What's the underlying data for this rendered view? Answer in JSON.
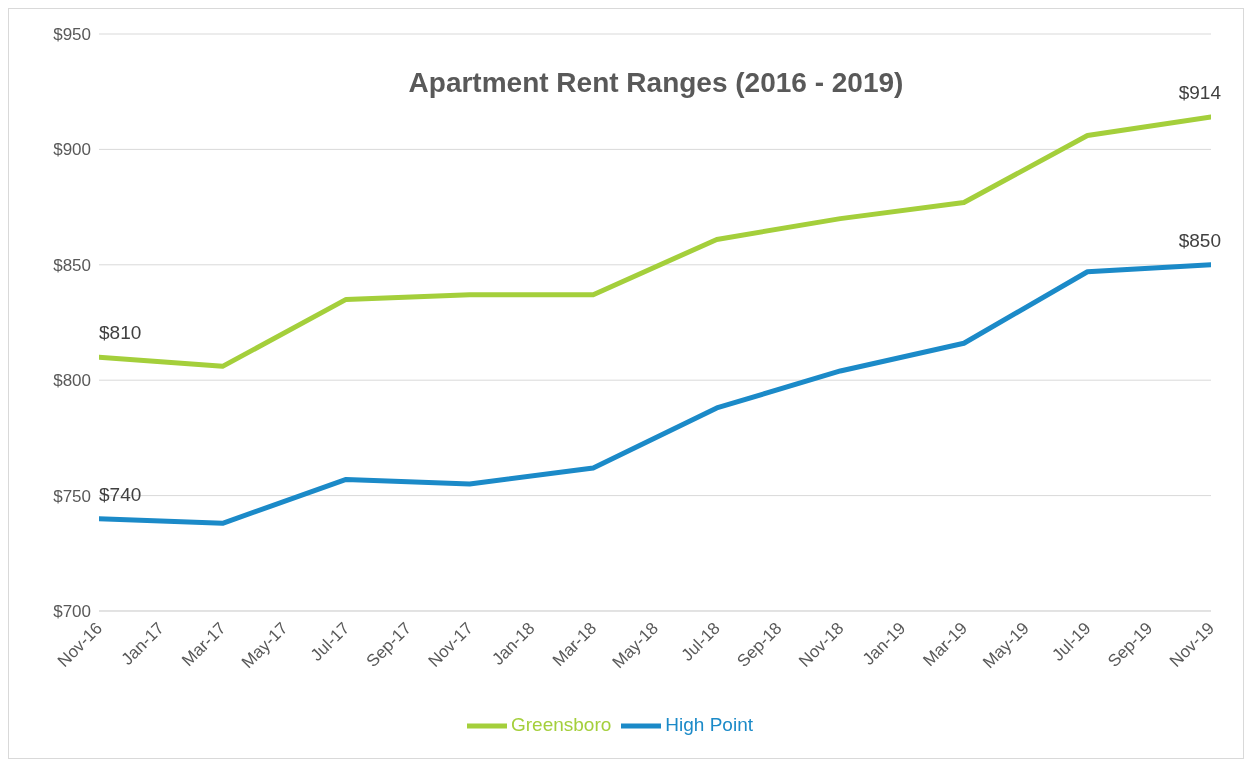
{
  "chart_data": {
    "type": "line",
    "title": "Apartment Rent Ranges (2016 - 2019)",
    "x": [
      "2016-11",
      "2017-03",
      "2017-07",
      "2017-11",
      "2018-03",
      "2018-07",
      "2018-11",
      "2019-03",
      "2019-07",
      "2019-11"
    ],
    "series": [
      {
        "name": "Greensboro",
        "color": "#a4cf3b",
        "values": [
          810,
          806,
          835,
          837,
          837,
          861,
          870,
          877,
          906,
          914
        ],
        "value_labels": [
          "$810",
          null,
          null,
          null,
          null,
          null,
          null,
          null,
          null,
          "$914"
        ]
      },
      {
        "name": "High Point",
        "color": "#1b8ac8",
        "values": [
          740,
          738,
          757,
          755,
          762,
          788,
          804,
          816,
          847,
          850
        ],
        "value_labels": [
          "$740",
          null,
          null,
          null,
          null,
          null,
          null,
          null,
          null,
          "$850"
        ]
      }
    ],
    "xlim": [
      "2016-11",
      "2019-11"
    ],
    "xticks": [
      {
        "value": "2016-11",
        "label": "Nov-16"
      },
      {
        "value": "2017-01",
        "label": "Jan-17"
      },
      {
        "value": "2017-03",
        "label": "Mar-17"
      },
      {
        "value": "2017-05",
        "label": "May-17"
      },
      {
        "value": "2017-07",
        "label": "Jul-17"
      },
      {
        "value": "2017-09",
        "label": "Sep-17"
      },
      {
        "value": "2017-11",
        "label": "Nov-17"
      },
      {
        "value": "2018-01",
        "label": "Jan-18"
      },
      {
        "value": "2018-03",
        "label": "Mar-18"
      },
      {
        "value": "2018-05",
        "label": "May-18"
      },
      {
        "value": "2018-07",
        "label": "Jul-18"
      },
      {
        "value": "2018-09",
        "label": "Sep-18"
      },
      {
        "value": "2018-11",
        "label": "Nov-18"
      },
      {
        "value": "2019-01",
        "label": "Jan-19"
      },
      {
        "value": "2019-03",
        "label": "Mar-19"
      },
      {
        "value": "2019-05",
        "label": "May-19"
      },
      {
        "value": "2019-07",
        "label": "Jul-19"
      },
      {
        "value": "2019-09",
        "label": "Sep-19"
      },
      {
        "value": "2019-11",
        "label": "Nov-19"
      }
    ],
    "ylim": [
      700,
      950
    ],
    "yticks": [
      {
        "value": 700,
        "label": "$700"
      },
      {
        "value": 750,
        "label": "$750"
      },
      {
        "value": 800,
        "label": "$800"
      },
      {
        "value": 850,
        "label": "$850"
      },
      {
        "value": 900,
        "label": "$900"
      },
      {
        "value": 950,
        "label": "$950"
      }
    ],
    "grid": "y",
    "legend": "bottom",
    "marker": "none",
    "line_style": "solid"
  }
}
